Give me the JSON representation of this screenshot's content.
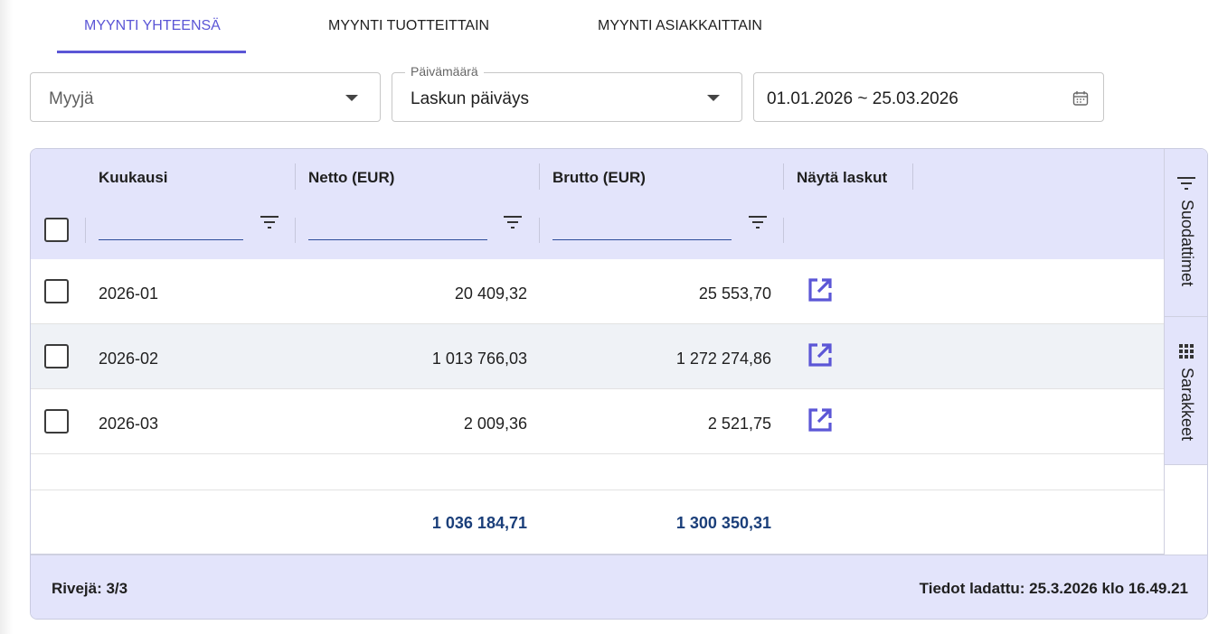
{
  "tabs": [
    {
      "label": "MYYNTI YHTEENSÄ",
      "active": true
    },
    {
      "label": "MYYNTI TUOTTEITTAIN",
      "active": false
    },
    {
      "label": "MYYNTI ASIAKKAITTAIN",
      "active": false
    }
  ],
  "filters": {
    "seller": {
      "placeholder": "Myyjä"
    },
    "date_type": {
      "legend": "Päivämäärä",
      "value": "Laskun päiväys"
    },
    "date_range": {
      "value": "01.01.2026 ~ 25.03.2026"
    }
  },
  "grid": {
    "columns": [
      "Kuukausi",
      "Netto (EUR)",
      "Brutto (EUR)",
      "Näytä laskut"
    ],
    "rows": [
      {
        "month": "2026-01",
        "net": "20 409,32",
        "gross": "25 553,70"
      },
      {
        "month": "2026-02",
        "net": "1 013 766,03",
        "gross": "1 272 274,86"
      },
      {
        "month": "2026-03",
        "net": "2 009,36",
        "gross": "2 521,75"
      }
    ],
    "totals": {
      "net": "1 036 184,71",
      "gross": "1 300 350,31"
    },
    "footer": {
      "rows": "Rivejä: 3/3",
      "loaded": "Tiedot ladattu: 25.3.2026 klo 16.49.21"
    },
    "side": {
      "filters_label": "Suodattimet",
      "columns_label": "Sarakkeet"
    }
  },
  "colors": {
    "accent": "#5b56d6",
    "header_bg": "#e3e4fb",
    "totals_text": "#1b3f7a"
  },
  "icons": [
    "caret-down-icon",
    "calendar-icon",
    "filter-icon",
    "open-in-new-icon",
    "grid-icon"
  ]
}
